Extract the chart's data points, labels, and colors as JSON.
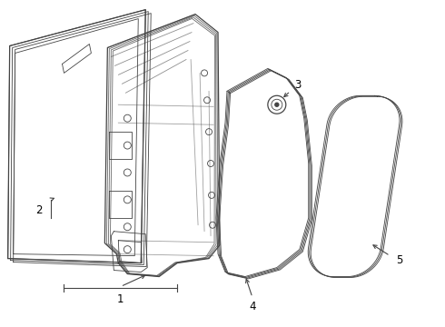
{
  "bg_color": "#ffffff",
  "line_color": "#444444",
  "label_color": "#000000",
  "lw_thin": 0.6,
  "lw_med": 0.9,
  "figsize": [
    4.9,
    3.6
  ],
  "dpi": 100
}
